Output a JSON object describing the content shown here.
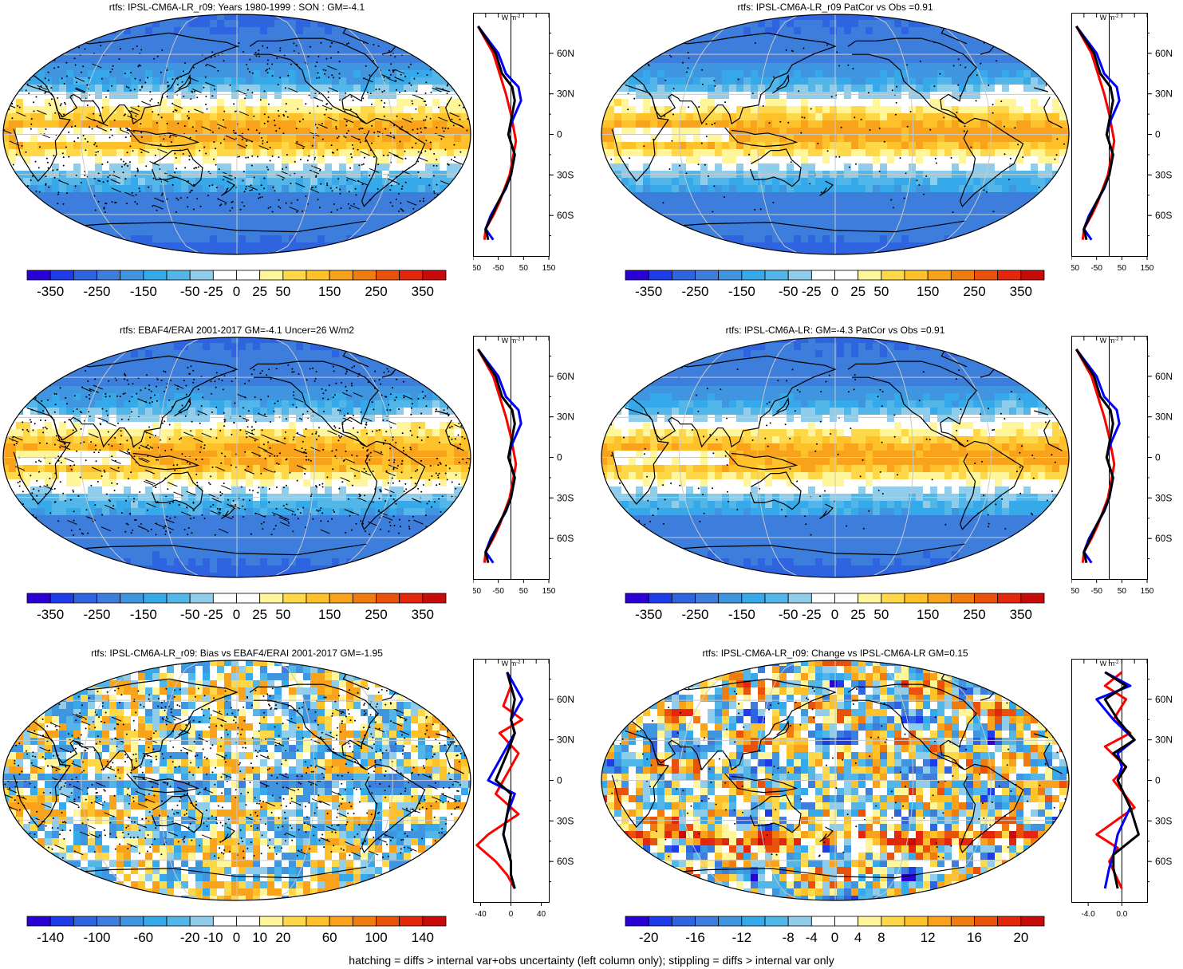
{
  "footer": "hatching = diffs > internal var+obs uncertainty (left column only); stippling = diffs > internal var only",
  "zonal_axis": {
    "unit": "W m",
    "unit_sup": "-2",
    "lat_labels": [
      "60N",
      "30N",
      "0",
      "30S",
      "60S"
    ]
  },
  "colorbars": {
    "main": {
      "colors": [
        "#2a00d6",
        "#1e3ce8",
        "#2f64e0",
        "#3d7ddc",
        "#3f95e0",
        "#35a9ea",
        "#52b6e8",
        "#8fcdea",
        "#ffffff",
        "#ffffff",
        "#fff59a",
        "#ffd84a",
        "#ffc12a",
        "#f9a21c",
        "#f07c10",
        "#ea520c",
        "#e3260c",
        "#c90a0a"
      ],
      "labels": [
        "-350",
        "-250",
        "-150",
        "-50",
        "-25",
        "0",
        "25",
        "50",
        "150",
        "250",
        "350"
      ]
    },
    "bias": {
      "colors": [
        "#2a00d6",
        "#1e3ce8",
        "#2f64e0",
        "#3d7ddc",
        "#3f95e0",
        "#35a9ea",
        "#52b6e8",
        "#8fcdea",
        "#ffffff",
        "#ffffff",
        "#fff59a",
        "#ffd84a",
        "#ffc12a",
        "#f9a21c",
        "#f07c10",
        "#ea520c",
        "#e3260c",
        "#c90a0a"
      ],
      "labels": [
        "-140",
        "-100",
        "-60",
        "-20",
        "-10",
        "0",
        "10",
        "20",
        "60",
        "100",
        "140"
      ]
    },
    "change": {
      "colors": [
        "#2a00d6",
        "#1e3ce8",
        "#2f64e0",
        "#3d7ddc",
        "#3f95e0",
        "#35a9ea",
        "#52b6e8",
        "#8fcdea",
        "#ffffff",
        "#ffffff",
        "#fff59a",
        "#ffd84a",
        "#ffc12a",
        "#f9a21c",
        "#f07c10",
        "#ea520c",
        "#e3260c",
        "#c90a0a"
      ],
      "labels": [
        "-20",
        "-16",
        "-12",
        "-8",
        "-4",
        "0",
        "4",
        "8",
        "12",
        "16",
        "20"
      ]
    }
  },
  "panels": [
    {
      "id": "p1",
      "title": "rtfs: IPSL-CM6A-LR_r09: Years 1980-1999 : SON : GM=-4.1",
      "field_mode": "mean",
      "stipple": "dense",
      "hatch": true,
      "colorbar": "main",
      "zonal_xticks": [
        "-150",
        "-50",
        "50",
        "150"
      ],
      "zonal_xlim": [
        -150,
        150
      ],
      "zonal_mode": "mean"
    },
    {
      "id": "p2",
      "title": "rtfs: IPSL-CM6A-LR_r09 PatCor vs Obs =0.91",
      "field_mode": "mean",
      "stipple": "sparse",
      "hatch": false,
      "colorbar": "main",
      "zonal_xticks": [
        "-150",
        "-50",
        "50",
        "150"
      ],
      "zonal_xlim": [
        -150,
        150
      ],
      "zonal_mode": "mean"
    },
    {
      "id": "p3",
      "title": "rtfs: EBAF4/ERAI 2001-2017 GM=-4.1 Uncer=26 W/m2",
      "field_mode": "mean",
      "stipple": "dense",
      "hatch": true,
      "colorbar": "main",
      "zonal_xticks": [
        "-150",
        "-50",
        "50",
        "150"
      ],
      "zonal_xlim": [
        -150,
        150
      ],
      "zonal_mode": "mean"
    },
    {
      "id": "p4",
      "title": "rtfs: IPSL-CM6A-LR: GM=-4.3 PatCor vs Obs =0.91",
      "field_mode": "mean",
      "stipple": "sparse",
      "hatch": false,
      "colorbar": "main",
      "zonal_xticks": [
        "-150",
        "-50",
        "50",
        "150"
      ],
      "zonal_xlim": [
        -150,
        150
      ],
      "zonal_mode": "mean"
    },
    {
      "id": "p5",
      "title": "rtfs: IPSL-CM6A-LR_r09: Bias vs EBAF4/ERAI 2001-2017  GM=-1.95",
      "field_mode": "bias",
      "stipple": "dense",
      "hatch": true,
      "colorbar": "bias",
      "zonal_xticks": [
        "-40",
        "0",
        "40"
      ],
      "zonal_xlim": [
        -50,
        50
      ],
      "zonal_mode": "bias"
    },
    {
      "id": "p6",
      "title": "rtfs: IPSL-CM6A-LR_r09: Change vs IPSL-CM6A-LR GM=0.15",
      "field_mode": "change",
      "stipple": "sparse",
      "hatch": false,
      "colorbar": "change",
      "zonal_xticks": [
        "-4.0",
        "0.0"
      ],
      "zonal_xlim": [
        -6,
        3
      ],
      "zonal_mode": "change"
    }
  ],
  "chart_data": [
    {
      "type": "heatmap",
      "title": "rtfs: IPSL-CM6A-LR_r09: Years 1980-1999 : SON : GM=-4.1",
      "projection": "Robinson",
      "colorbar_ticks": [
        -350,
        -250,
        -150,
        -50,
        -25,
        0,
        25,
        50,
        150,
        250,
        350
      ]
    },
    {
      "type": "line",
      "panel": "p1 zonal mean",
      "xlim": [
        -150,
        150
      ],
      "ylim": [
        -90,
        90
      ],
      "series": [
        {
          "color": "#ff0000",
          "x": [
            -130,
            -100,
            -70,
            -45,
            -20,
            0,
            10,
            20,
            10,
            -5,
            -25,
            -45,
            -70,
            -100,
            -105
          ],
          "y": [
            80,
            70,
            60,
            45,
            30,
            15,
            5,
            -5,
            -15,
            -30,
            -40,
            -50,
            -60,
            -70,
            -78
          ]
        },
        {
          "color": "#0000ff",
          "x": [
            -130,
            -90,
            -50,
            -20,
            30,
            40,
            5,
            -10,
            15,
            0,
            -20,
            -50,
            -80,
            -100,
            -70
          ],
          "y": [
            80,
            70,
            60,
            45,
            35,
            25,
            10,
            0,
            -15,
            -30,
            -40,
            -50,
            -60,
            -70,
            -78
          ]
        },
        {
          "color": "#000000",
          "x": [
            -130,
            -95,
            -60,
            -35,
            5,
            15,
            0,
            -10,
            15,
            0,
            -22,
            -50,
            -75,
            -100,
            -90
          ],
          "y": [
            80,
            70,
            60,
            45,
            35,
            25,
            10,
            0,
            -15,
            -30,
            -40,
            -50,
            -60,
            -70,
            -78
          ]
        }
      ]
    },
    {
      "type": "heatmap",
      "title": "rtfs: IPSL-CM6A-LR_r09 PatCor vs Obs =0.91",
      "projection": "Robinson",
      "colorbar_ticks": [
        -350,
        -250,
        -150,
        -50,
        -25,
        0,
        25,
        50,
        150,
        250,
        350
      ]
    },
    {
      "type": "heatmap",
      "title": "rtfs: EBAF4/ERAI 2001-2017 GM=-4.1 Uncer=26 W/m2",
      "projection": "Robinson",
      "colorbar_ticks": [
        -350,
        -250,
        -150,
        -50,
        -25,
        0,
        25,
        50,
        150,
        250,
        350
      ]
    },
    {
      "type": "heatmap",
      "title": "rtfs: IPSL-CM6A-LR: GM=-4.3 PatCor vs Obs =0.91",
      "projection": "Robinson",
      "colorbar_ticks": [
        -350,
        -250,
        -150,
        -50,
        -25,
        0,
        25,
        50,
        150,
        250,
        350
      ]
    },
    {
      "type": "heatmap",
      "title": "rtfs: IPSL-CM6A-LR_r09: Bias vs EBAF4/ERAI 2001-2017  GM=-1.95",
      "projection": "Robinson",
      "colorbar_ticks": [
        -140,
        -100,
        -60,
        -20,
        -10,
        0,
        10,
        20,
        60,
        100,
        140
      ]
    },
    {
      "type": "line",
      "panel": "p5 zonal mean",
      "xlim": [
        -50,
        50
      ],
      "ylim": [
        -90,
        90
      ],
      "series": [
        {
          "color": "#ff0000",
          "x": [
            -5,
            0,
            -10,
            15,
            -15,
            10,
            -5,
            -20,
            10,
            -30,
            -45,
            -20,
            -5,
            5
          ],
          "y": [
            80,
            70,
            55,
            45,
            35,
            20,
            5,
            -10,
            -25,
            -40,
            -48,
            -60,
            -70,
            -80
          ]
        },
        {
          "color": "#0000ff",
          "x": [
            -5,
            5,
            15,
            0,
            5,
            -10,
            -30,
            5,
            -5,
            -10,
            -5,
            0,
            0,
            5
          ],
          "y": [
            80,
            70,
            60,
            45,
            35,
            20,
            0,
            -10,
            -25,
            -40,
            -50,
            -60,
            -70,
            -80
          ]
        },
        {
          "color": "#000000",
          "x": [
            -5,
            0,
            5,
            0,
            5,
            -5,
            -20,
            0,
            -5,
            -10,
            -5,
            0,
            0,
            5
          ],
          "y": [
            80,
            70,
            60,
            45,
            35,
            20,
            0,
            -10,
            -25,
            -40,
            -50,
            -60,
            -70,
            -80
          ]
        }
      ]
    },
    {
      "type": "heatmap",
      "title": "rtfs: IPSL-CM6A-LR_r09: Change vs IPSL-CM6A-LR GM=0.15",
      "projection": "Robinson",
      "colorbar_ticks": [
        -20,
        -16,
        -12,
        -8,
        -4,
        0,
        4,
        8,
        12,
        16,
        20
      ]
    },
    {
      "type": "line",
      "panel": "p6 zonal mean",
      "xlim": [
        -6,
        3
      ],
      "ylim": [
        -90,
        90
      ],
      "series": [
        {
          "color": "#ff0000",
          "x": [
            0,
            -2,
            0.5,
            -1,
            1,
            -2,
            0.5,
            -1,
            1.5,
            -3,
            -0.5,
            -1.5,
            0
          ],
          "y": [
            80,
            70,
            60,
            45,
            35,
            25,
            10,
            0,
            -20,
            -40,
            -50,
            -60,
            -80
          ]
        },
        {
          "color": "#0000ff",
          "x": [
            -2,
            1,
            -3,
            -1,
            1.5,
            -0.5,
            0,
            -0.5,
            1,
            -0.5,
            -1,
            -1.5,
            -2
          ],
          "y": [
            80,
            70,
            60,
            45,
            30,
            20,
            10,
            0,
            -20,
            -40,
            -55,
            -65,
            -80
          ]
        },
        {
          "color": "#000000",
          "x": [
            -2,
            0.5,
            -2,
            -0.5,
            1.5,
            -1,
            0.5,
            -0.5,
            1,
            2,
            -1,
            -1,
            -0.5
          ],
          "y": [
            80,
            70,
            60,
            45,
            30,
            20,
            10,
            0,
            -20,
            -40,
            -55,
            -65,
            -80
          ]
        }
      ]
    }
  ]
}
